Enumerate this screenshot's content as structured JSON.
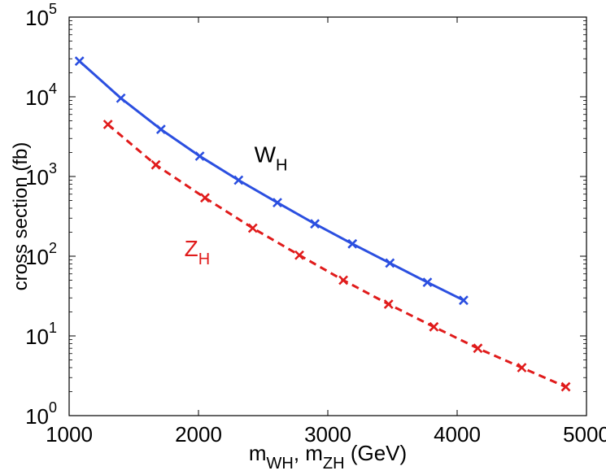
{
  "chart_data": {
    "type": "line",
    "title": "",
    "xlabel": {
      "base": "m",
      "sub1": "WH",
      "sep": ", m",
      "sub2": "ZH",
      "unit": "   (GeV)"
    },
    "ylabel": "cross section   (fb)",
    "xlim": [
      1000,
      5000
    ],
    "ylim": [
      1,
      100000
    ],
    "yscale": "log",
    "x_ticks": [
      1000,
      2000,
      3000,
      4000,
      5000
    ],
    "x_tick_labels": [
      "1000",
      "2000",
      "3000",
      "4000",
      "5000"
    ],
    "y_ticks": [
      {
        "value": 1,
        "base": "10",
        "exp": "0"
      },
      {
        "value": 10,
        "base": "10",
        "exp": "1"
      },
      {
        "value": 100,
        "base": "10",
        "exp": "2"
      },
      {
        "value": 1000,
        "base": "10",
        "exp": "3"
      },
      {
        "value": 10000,
        "base": "10",
        "exp": "4"
      },
      {
        "value": 100000,
        "base": "10",
        "exp": "5"
      }
    ],
    "series": [
      {
        "name": "W_H",
        "label_base": "W",
        "label_sub": "H",
        "color": "#2b4fe0",
        "dash": "solid",
        "label_at": {
          "x": 2560,
          "y": 1500
        },
        "x": [
          1080,
          1400,
          1710,
          2010,
          2310,
          2610,
          2900,
          3190,
          3480,
          3770,
          4050
        ],
        "values": [
          28000,
          9600,
          3900,
          1800,
          900,
          470,
          255,
          143,
          82,
          47,
          28
        ]
      },
      {
        "name": "Z_H",
        "label_base": "Z",
        "label_sub": "H",
        "color": "#e01b1b",
        "dash": "dashed",
        "label_at": {
          "x": 1990,
          "y": 100
        },
        "x": [
          1300,
          1670,
          2050,
          2420,
          2780,
          3120,
          3470,
          3820,
          4160,
          4500,
          4840
        ],
        "values": [
          4500,
          1400,
          540,
          225,
          103,
          50,
          25,
          13,
          7,
          4,
          2.3
        ]
      }
    ],
    "legend": "none (inline labels)",
    "grid": false
  }
}
